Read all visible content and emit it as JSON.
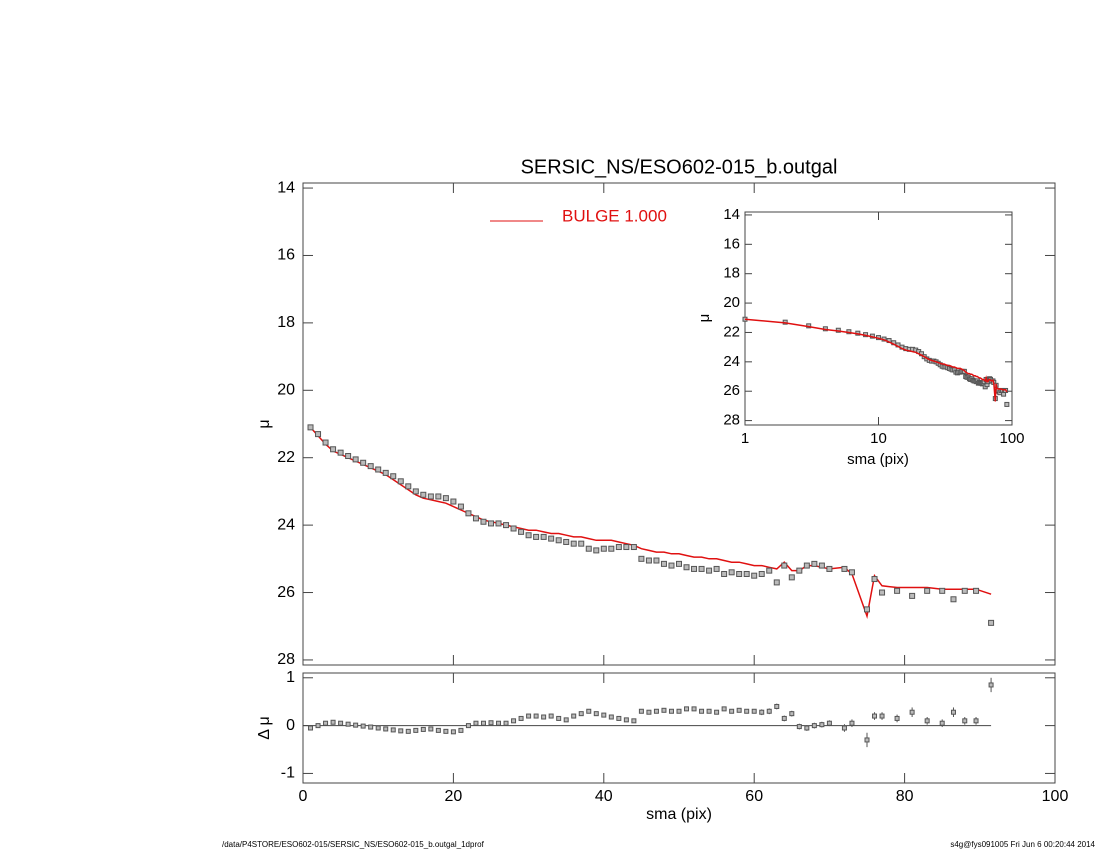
{
  "chart_data": [
    {
      "type": "scatter",
      "title": "SERSIC_NS/ESO602-015_b.outgal",
      "ylabel": "μ",
      "x": [
        1,
        2,
        3,
        4,
        5,
        6,
        7,
        8,
        9,
        10,
        11,
        12,
        13,
        14,
        15,
        16,
        17,
        18,
        19,
        20,
        21,
        22,
        23,
        24,
        25,
        26,
        27,
        28,
        29,
        30,
        31,
        32,
        33,
        34,
        35,
        36,
        37,
        38,
        39,
        40,
        41,
        42,
        43,
        44,
        45,
        46,
        47,
        48,
        49,
        50,
        51,
        52,
        53,
        54,
        55,
        56,
        57,
        58,
        59,
        60,
        61,
        62,
        63,
        64,
        65,
        66,
        67,
        68,
        69,
        70,
        72,
        73,
        75,
        76,
        77,
        79,
        81,
        83,
        85,
        86.5,
        88,
        89.5,
        91.5
      ],
      "series": [
        {
          "name": "BULGE  1.000",
          "color": "#e01010",
          "style": "line",
          "values": [
            21.1,
            21.35,
            21.6,
            21.8,
            21.9,
            22.0,
            22.1,
            22.2,
            22.3,
            22.4,
            22.5,
            22.65,
            22.8,
            22.95,
            23.1,
            23.2,
            23.25,
            23.3,
            23.35,
            23.45,
            23.55,
            23.65,
            23.75,
            23.85,
            23.9,
            23.95,
            24.0,
            24.05,
            24.1,
            24.15,
            24.15,
            24.2,
            24.25,
            24.25,
            24.3,
            24.35,
            24.35,
            24.4,
            24.45,
            24.45,
            24.45,
            24.5,
            24.55,
            24.6,
            24.7,
            24.75,
            24.8,
            24.8,
            24.85,
            24.85,
            24.9,
            24.95,
            24.95,
            25.0,
            25.0,
            25.05,
            25.1,
            25.1,
            25.15,
            25.2,
            25.2,
            25.25,
            25.3,
            25.1,
            25.35,
            25.35,
            25.2,
            25.2,
            25.25,
            25.3,
            25.25,
            25.45,
            26.7,
            25.5,
            25.8,
            25.85,
            25.85,
            25.85,
            25.9,
            25.9,
            25.9,
            25.9,
            26.05
          ]
        },
        {
          "color": "#555555",
          "style": "square",
          "values": [
            21.1,
            21.3,
            21.55,
            21.75,
            21.85,
            21.95,
            22.05,
            22.15,
            22.25,
            22.35,
            22.45,
            22.55,
            22.7,
            22.85,
            23.0,
            23.1,
            23.15,
            23.15,
            23.2,
            23.3,
            23.45,
            23.65,
            23.8,
            23.9,
            23.95,
            23.95,
            24.0,
            24.1,
            24.2,
            24.3,
            24.35,
            24.35,
            24.4,
            24.45,
            24.5,
            24.55,
            24.55,
            24.7,
            24.75,
            24.7,
            24.7,
            24.65,
            24.65,
            24.65,
            25.0,
            25.05,
            25.05,
            25.15,
            25.2,
            25.15,
            25.25,
            25.3,
            25.3,
            25.35,
            25.3,
            25.45,
            25.4,
            25.45,
            25.45,
            25.5,
            25.45,
            25.35,
            25.7,
            25.2,
            25.55,
            25.35,
            25.2,
            25.15,
            25.2,
            25.3,
            25.3,
            25.4,
            26.5,
            25.6,
            26.0,
            25.95,
            26.1,
            25.95,
            25.95,
            26.2,
            25.95,
            25.95,
            26.9
          ]
        }
      ],
      "ylim": [
        13.85,
        28.15
      ],
      "yticks": [
        14,
        16,
        18,
        20,
        22,
        24,
        26,
        28
      ],
      "y_inverted": true,
      "legend": "top"
    },
    {
      "type": "scatter",
      "ylabel": "Δ μ",
      "xlabel": "sma (pix)",
      "values": [
        -0.05,
        0.0,
        0.05,
        0.07,
        0.05,
        0.03,
        0.01,
        -0.01,
        -0.03,
        -0.05,
        -0.07,
        -0.09,
        -0.11,
        -0.12,
        -0.1,
        -0.08,
        -0.07,
        -0.1,
        -0.12,
        -0.13,
        -0.1,
        0.0,
        0.05,
        0.05,
        0.06,
        0.05,
        0.05,
        0.1,
        0.15,
        0.2,
        0.2,
        0.18,
        0.2,
        0.15,
        0.12,
        0.2,
        0.25,
        0.3,
        0.25,
        0.22,
        0.18,
        0.15,
        0.12,
        0.1,
        0.3,
        0.28,
        0.3,
        0.32,
        0.3,
        0.3,
        0.35,
        0.35,
        0.3,
        0.3,
        0.28,
        0.35,
        0.3,
        0.32,
        0.3,
        0.3,
        0.28,
        0.3,
        0.4,
        0.15,
        0.25,
        -0.02,
        -0.05,
        0.0,
        0.02,
        0.05,
        -0.05,
        0.05,
        -0.3,
        0.2,
        0.2,
        0.15,
        0.28,
        0.1,
        0.05,
        0.28,
        0.1,
        0.1,
        0.85
      ],
      "errors": [
        0.02,
        0.02,
        0.02,
        0.02,
        0.02,
        0.02,
        0.02,
        0.02,
        0.02,
        0.02,
        0.02,
        0.02,
        0.02,
        0.02,
        0.02,
        0.02,
        0.02,
        0.02,
        0.02,
        0.02,
        0.02,
        0.02,
        0.02,
        0.02,
        0.02,
        0.02,
        0.02,
        0.02,
        0.02,
        0.02,
        0.04,
        0.04,
        0.04,
        0.04,
        0.04,
        0.04,
        0.04,
        0.04,
        0.04,
        0.04,
        0.04,
        0.04,
        0.04,
        0.04,
        0.04,
        0.04,
        0.04,
        0.04,
        0.04,
        0.04,
        0.04,
        0.04,
        0.04,
        0.04,
        0.04,
        0.04,
        0.04,
        0.04,
        0.04,
        0.04,
        0.06,
        0.06,
        0.06,
        0.06,
        0.06,
        0.06,
        0.06,
        0.06,
        0.06,
        0.06,
        0.08,
        0.08,
        0.15,
        0.08,
        0.08,
        0.08,
        0.1,
        0.08,
        0.08,
        0.1,
        0.08,
        0.08,
        0.15
      ],
      "color": "#555555",
      "ylim": [
        -1.2,
        1.1
      ],
      "yticks": [
        -1,
        0,
        1
      ],
      "xlim": [
        0,
        100
      ],
      "xticks": [
        0,
        20,
        40,
        60,
        80,
        100
      ]
    },
    {
      "type": "scatter",
      "xlabel": "sma (pix)",
      "ylabel": "μ",
      "xscale": "log",
      "xlim": [
        1,
        100
      ],
      "xticks": [
        1,
        10,
        100
      ],
      "ylim": [
        13.8,
        28.3
      ],
      "yticks": [
        14,
        16,
        18,
        20,
        22,
        24,
        26,
        28
      ],
      "y_inverted": true
    },
    {
      "type": "footer",
      "left": "/data/P4STORE/ESO602-015/SERSIC_NS/ESO602-015_b.outgal_1dprof",
      "right": "s4g@fys091005  Fri Jun  6 00:20:44 2014"
    }
  ]
}
